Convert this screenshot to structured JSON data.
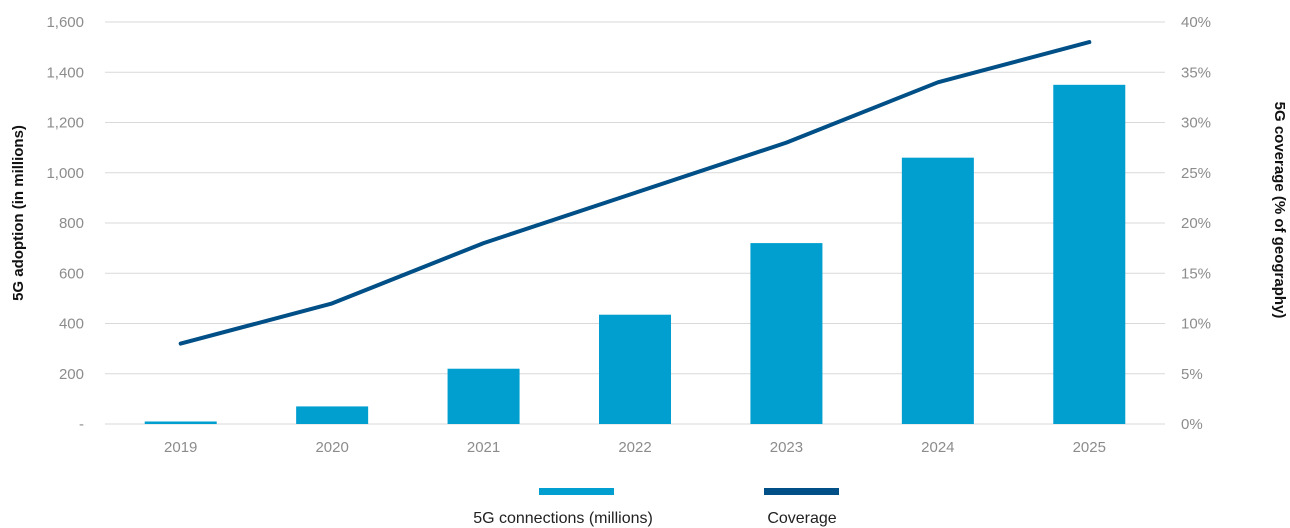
{
  "chart_data": {
    "type": "bar",
    "categories": [
      "2019",
      "2020",
      "2021",
      "2022",
      "2023",
      "2024",
      "2025"
    ],
    "series": [
      {
        "name": "5G connections (millions)",
        "type": "bar",
        "axis": "left",
        "color": "#009fcf",
        "values": [
          10,
          70,
          220,
          435,
          720,
          1060,
          1350
        ]
      },
      {
        "name": "Coverage",
        "type": "line",
        "axis": "right",
        "color": "#004f86",
        "values": [
          8,
          12,
          18,
          23,
          28,
          34,
          38
        ]
      }
    ],
    "ylabel": "5G adoption (in millions)",
    "y2label": "5G coverage (% of geography)",
    "ylim": [
      0,
      1600
    ],
    "y2lim": [
      0,
      40
    ],
    "y_ticks": [
      "-",
      "200",
      "400",
      "600",
      "800",
      "1,000",
      "1,200",
      "1,400",
      "1,600"
    ],
    "y2_ticks": [
      "0%",
      "5%",
      "10%",
      "15%",
      "20%",
      "25%",
      "30%",
      "35%",
      "40%"
    ],
    "grid": "horizontal",
    "legend": "bottom-center"
  }
}
